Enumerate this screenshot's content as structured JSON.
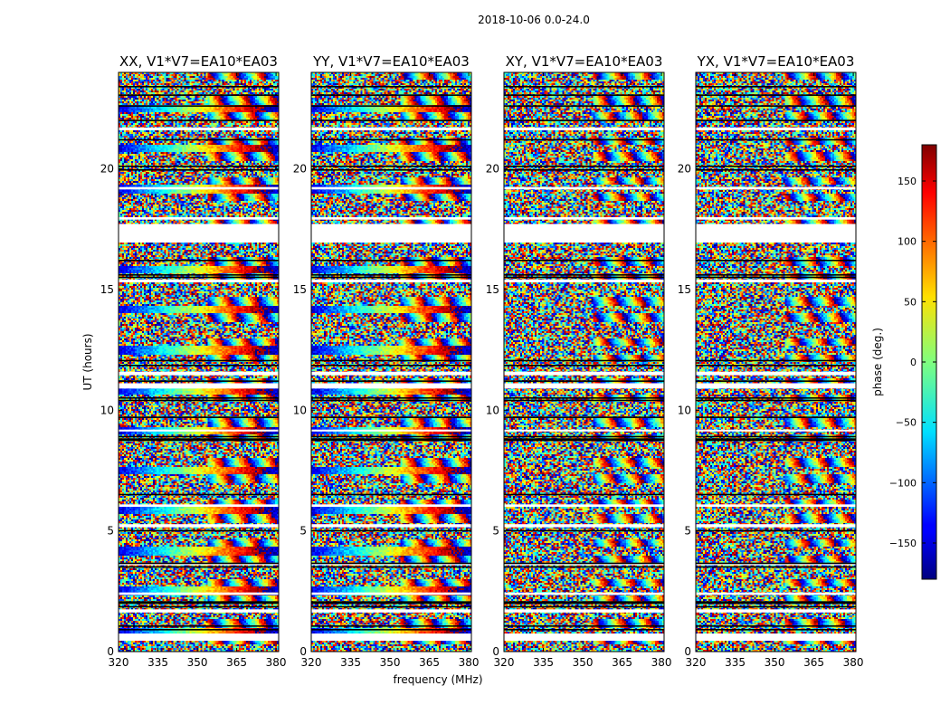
{
  "chart_data": {
    "type": "heatmap",
    "suptitle": "2018-10-06 0.0-24.0",
    "xlabel": "frequency (MHz)",
    "ylabel": "UT (hours)",
    "xlim": [
      320,
      381
    ],
    "ylim": [
      0,
      24
    ],
    "x_ticks": [
      320,
      335,
      350,
      365,
      380
    ],
    "y_ticks": [
      0,
      5,
      10,
      15,
      20
    ],
    "panels": [
      {
        "title": "XX, V1*V7=EA10*EA03",
        "polarization": "XX",
        "coherent_bands": true
      },
      {
        "title": "YY, V1*V7=EA10*EA03",
        "polarization": "YY",
        "coherent_bands": true
      },
      {
        "title": "XY, V1*V7=EA10*EA03",
        "polarization": "XY",
        "coherent_bands": false
      },
      {
        "title": "YX, V1*V7=EA10*EA03",
        "polarization": "YX",
        "coherent_bands": false
      }
    ],
    "colorbar": {
      "label": "phase (deg.)",
      "range": [
        -180,
        180
      ],
      "ticks": [
        -150,
        -100,
        -50,
        0,
        50,
        100,
        150
      ],
      "ticklabels": [
        "−150",
        "−100",
        "−50",
        "0",
        "50",
        "100",
        "150"
      ],
      "colormap": "jet"
    },
    "blank_intervals_hours": [
      [
        0.45,
        0.75
      ],
      [
        1.62,
        1.75
      ],
      [
        2.35,
        2.45
      ],
      [
        3.58,
        3.68
      ],
      [
        5.15,
        5.28
      ],
      [
        6.0,
        6.1
      ],
      [
        9.12,
        9.2
      ],
      [
        10.9,
        11.12
      ],
      [
        11.45,
        11.6
      ],
      [
        15.3,
        15.42
      ],
      [
        16.95,
        17.72
      ],
      [
        17.9,
        18.0
      ],
      [
        19.15,
        19.25
      ],
      [
        21.6,
        21.72
      ]
    ],
    "flag_lines_hours": [
      0.9,
      1.05,
      1.85,
      2.0,
      2.05,
      3.5,
      3.65,
      5.0,
      6.5,
      8.75,
      8.8,
      8.9,
      9.7,
      10.4,
      10.5,
      11.2,
      11.85,
      12.05,
      15.5,
      15.6,
      16.2,
      19.95,
      20.1,
      21.2,
      22.0,
      22.6,
      23.05,
      23.4
    ]
  }
}
